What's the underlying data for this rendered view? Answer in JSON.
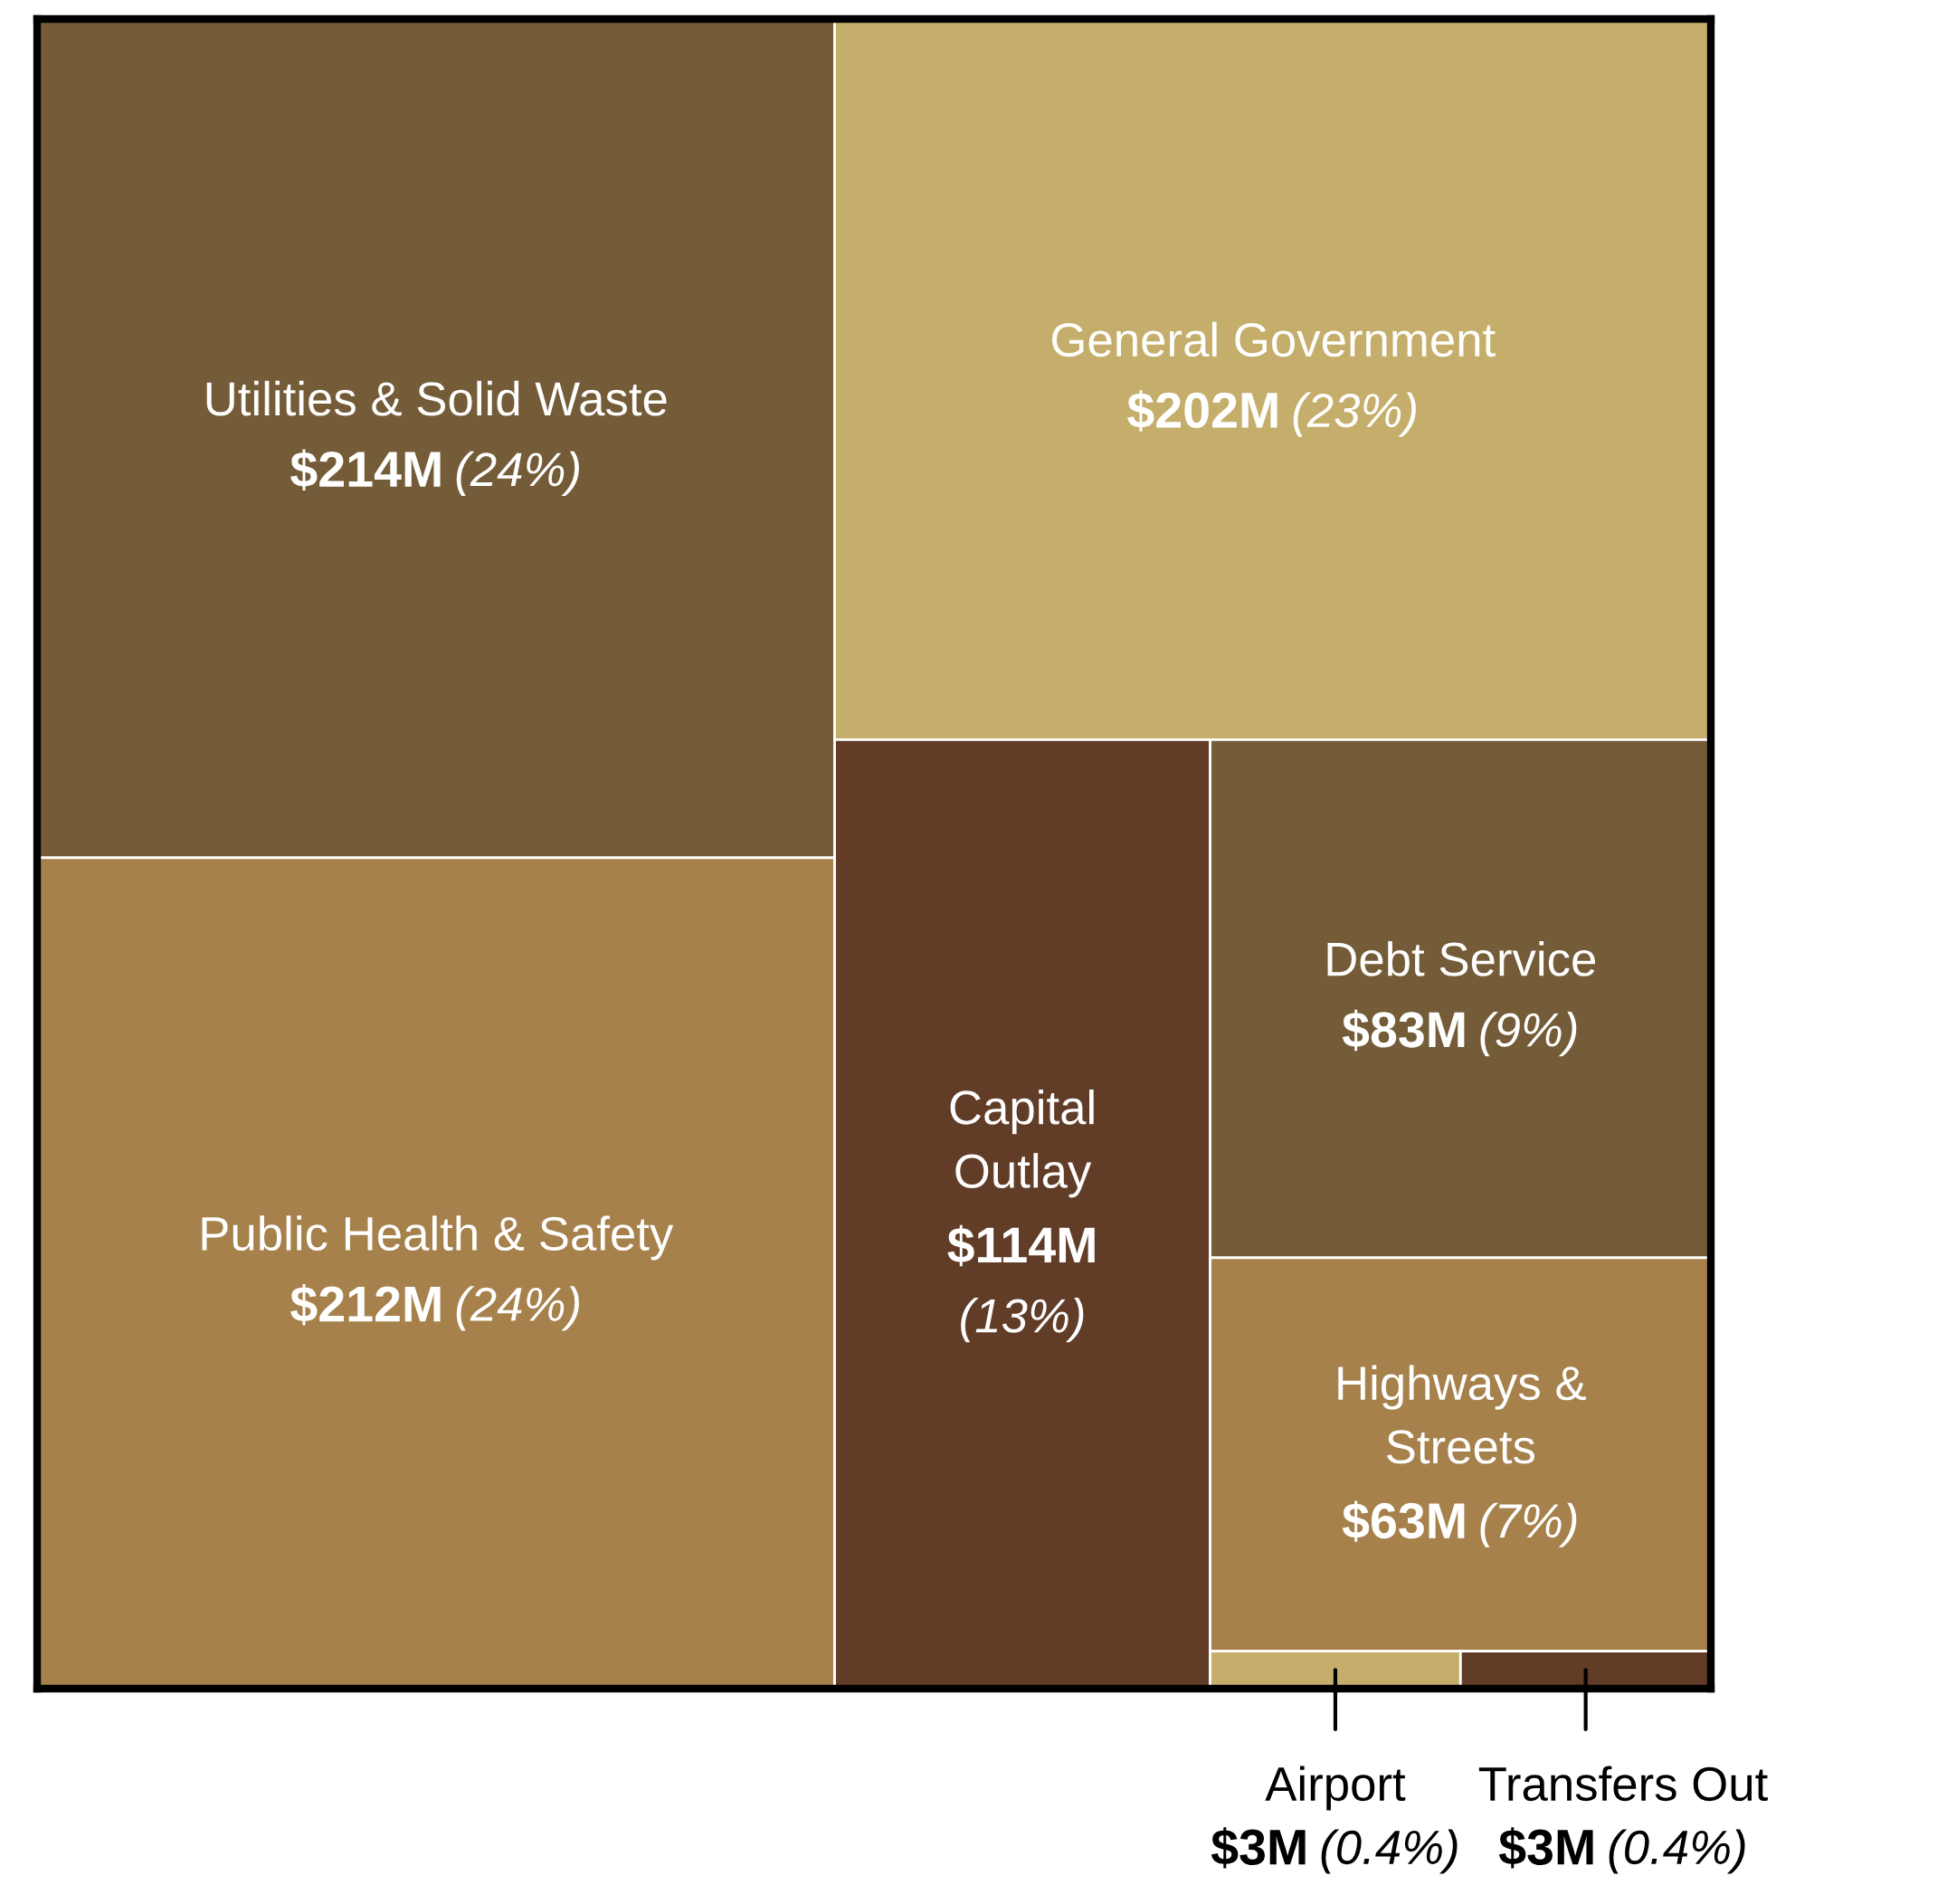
{
  "chart_data": {
    "type": "other",
    "categories": [
      "Utilities & Solid Waste",
      "Public Health & Safety",
      "General Government",
      "Capital\nOutlay",
      "Debt Service",
      "Highways &\nStreets",
      "Airport",
      "Transfers Out"
    ],
    "series": [
      {
        "colors": [
          "#745c38",
          "#a6814c",
          "#c5ae6b",
          "#613d28",
          "#745c38",
          "#a6814c",
          "#c5ae6b",
          "#613d28"
        ],
        "values": [
          214,
          212,
          202,
          114,
          83,
          63,
          3,
          3
        ],
        "value_labels": [
          "$214M",
          "$212M",
          "$202M",
          "$114M",
          "$83M",
          "$63M",
          "$3M",
          "$3M"
        ]
      },
      {
        "values": [
          24,
          24,
          23,
          13,
          9,
          7,
          0.4,
          0.4
        ],
        "value_labels": [
          "(24%)",
          "(24%)",
          "(23%)",
          "(13%)",
          "(9%)",
          "(7%)",
          "(0.4%)",
          "(0.4%)"
        ]
      }
    ]
  }
}
